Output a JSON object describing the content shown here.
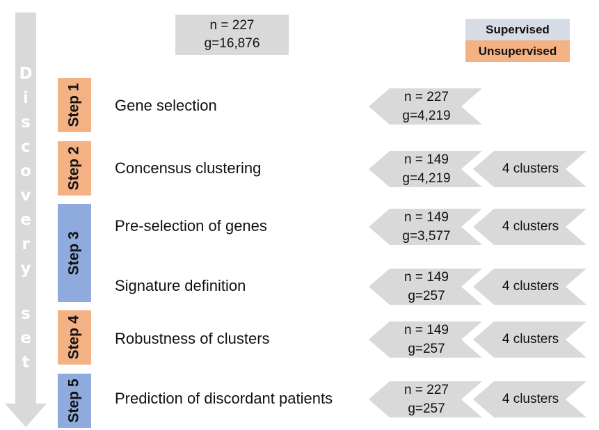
{
  "colors": {
    "unsupervised": "#f4b183",
    "supervised": "#8faadc",
    "legend_supervised": "#d6dce5",
    "legend_unsupervised": "#f4b183",
    "gray": "#d9d9d9"
  },
  "top_box": {
    "n": "n = 227",
    "g": "g=16,876"
  },
  "legend": {
    "supervised": "Supervised",
    "unsupervised": "Unsupervised"
  },
  "side_label": [
    "D",
    "i",
    "s",
    "c",
    "o",
    "v",
    "e",
    "r",
    "y",
    "",
    "s",
    "e",
    "t"
  ],
  "steps": [
    {
      "label": "Step 1",
      "type": "unsupervised"
    },
    {
      "label": "Step 2",
      "type": "unsupervised"
    },
    {
      "label": "Step 3",
      "type": "supervised"
    },
    {
      "label": "Step 4",
      "type": "unsupervised"
    },
    {
      "label": "Step 5",
      "type": "supervised"
    }
  ],
  "rows": [
    {
      "name": "Gene selection",
      "n": "n = 227",
      "g": "g=4,219",
      "clusters": ""
    },
    {
      "name": "Concensus clustering",
      "n": "n = 149",
      "g": "g=4,219",
      "clusters": "4 clusters"
    },
    {
      "name": "Pre-selection of genes",
      "n": "n = 149",
      "g": "g=3,577",
      "clusters": "4 clusters"
    },
    {
      "name": "Signature definition",
      "n": "n = 149",
      "g": "g=257",
      "clusters": "4 clusters"
    },
    {
      "name": "Robustness of clusters",
      "n": "n = 149",
      "g": "g=257",
      "clusters": "4 clusters"
    },
    {
      "name": "Prediction of discordant patients",
      "n": "n = 227",
      "g": "g=257",
      "clusters": "4 clusters"
    }
  ]
}
